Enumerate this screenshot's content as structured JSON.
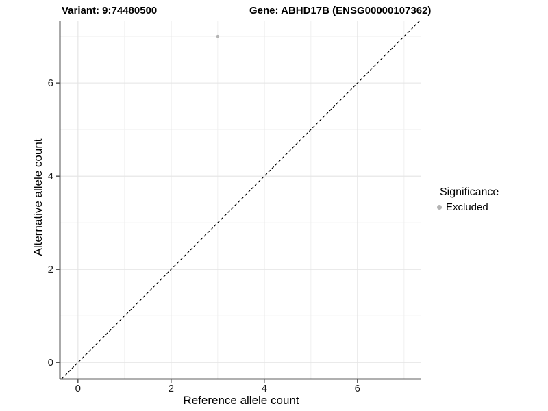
{
  "chart_data": {
    "type": "scatter",
    "titles": {
      "variant": "Variant: 9:74480500",
      "gene": "Gene: ABHD17B (ENSG00000107362)"
    },
    "xlabel": "Reference allele count",
    "ylabel": "Alternative allele count",
    "xlim": [
      -0.38,
      7.37
    ],
    "ylim": [
      -0.35,
      7.34
    ],
    "x_ticks": [
      0,
      2,
      4,
      6
    ],
    "y_ticks": [
      0,
      2,
      4,
      6
    ],
    "x_minor_ticks": [
      1,
      3,
      5,
      7
    ],
    "y_minor_ticks": [
      1,
      3,
      5,
      7
    ],
    "grid": "major and minor gridlines on white background",
    "series": [
      {
        "name": "Excluded",
        "color": "#b4b4b4",
        "marker": "circle",
        "points": [
          {
            "x": 3,
            "y": 7
          }
        ]
      }
    ],
    "reference_line": {
      "kind": "identity y=x",
      "style": "dashed",
      "color": "#000000"
    },
    "legend": {
      "title": "Significance",
      "position": "right",
      "entries": [
        {
          "label": "Excluded",
          "color": "#b4b4b4",
          "marker": "circle"
        }
      ]
    },
    "colors": {
      "background": "#ffffff",
      "grid_major": "#e4e4e4",
      "grid_minor": "#f0f0f0",
      "axis_line": "#2b2b2b",
      "tick_label": "#1a1a1a"
    }
  }
}
